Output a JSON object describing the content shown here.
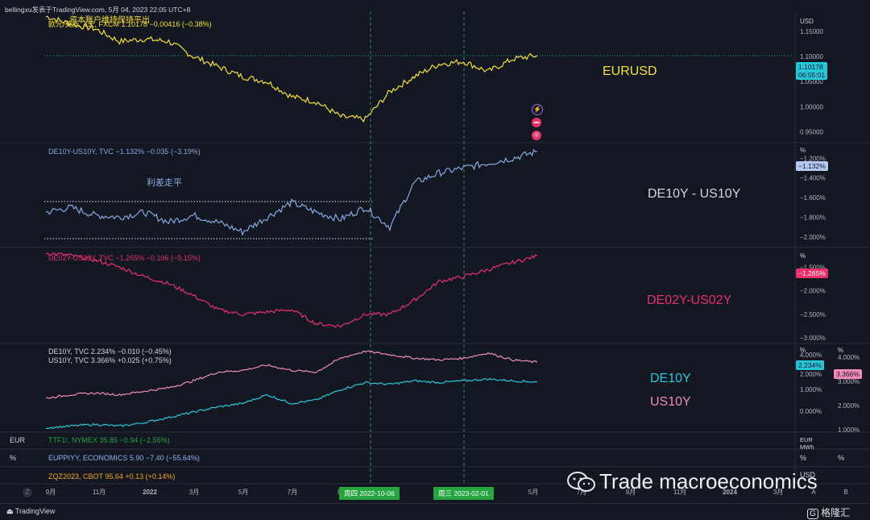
{
  "top_bar": {
    "text": "bellingxu发表于TradingView.com, 5月 04, 2023 22:05 UTC+8"
  },
  "chart_data": [
    {
      "type": "line",
      "header": "欧元/美元, 1天, FXCM  1.10178  −0.00416 (−0.38%)",
      "annotation": "资本账户维持保持平出",
      "panel_label": "EURUSD",
      "unit": "USD",
      "color": "#f5e031",
      "y_ticks": [
        "1.15000",
        "1.10000",
        "1.05000",
        "1.00000",
        "0.95000"
      ],
      "ylim": [
        0.93,
        1.19
      ],
      "last_label": "1.10178",
      "last_sub": "06:55:01",
      "x": [
        "2021-09",
        "2021-10",
        "2021-11",
        "2021-12",
        "2022-01",
        "2022-02",
        "2022-03",
        "2022-04",
        "2022-05",
        "2022-06",
        "2022-07",
        "2022-08",
        "2022-09",
        "2022-10",
        "2022-11",
        "2022-12",
        "2023-01",
        "2023-02",
        "2023-03",
        "2023-04",
        "2023-05"
      ],
      "values": [
        1.18,
        1.165,
        1.155,
        1.13,
        1.135,
        1.13,
        1.1,
        1.08,
        1.06,
        1.05,
        1.02,
        1.01,
        0.98,
        0.975,
        1.03,
        1.06,
        1.085,
        1.09,
        1.07,
        1.095,
        1.102
      ]
    },
    {
      "type": "line",
      "header": "DE10Y-US10Y, TVC  −1.132%  −0.035 (−3.19%)",
      "annotation": "利差走平",
      "panel_label": "DE10Y - US10Y",
      "unit": "%",
      "color": "#86a8e0",
      "y_ticks": [
        "−1.200%",
        "−1.400%",
        "−1.600%",
        "−1.800%",
        "−2.000%"
      ],
      "ylim": [
        -2.1,
        -1.05
      ],
      "last_label": "−1.132%",
      "x": [
        "2021-09",
        "2021-10",
        "2021-11",
        "2021-12",
        "2022-01",
        "2022-02",
        "2022-03",
        "2022-04",
        "2022-05",
        "2022-06",
        "2022-07",
        "2022-08",
        "2022-09",
        "2022-10",
        "2022-11",
        "2022-12",
        "2023-01",
        "2023-02",
        "2023-03",
        "2023-04",
        "2023-05"
      ],
      "values": [
        -1.75,
        -1.7,
        -1.78,
        -1.8,
        -1.75,
        -1.85,
        -1.78,
        -1.85,
        -1.95,
        -1.8,
        -1.65,
        -1.75,
        -1.82,
        -1.7,
        -1.9,
        -1.45,
        -1.35,
        -1.3,
        -1.25,
        -1.2,
        -1.132
      ]
    },
    {
      "type": "line",
      "header": "DE02Y-US02Y, TVC  −1.265%  −0.106 (−9.15%)",
      "panel_label": "DE02Y-US02Y",
      "unit": "%",
      "color": "#e8306a",
      "y_ticks": [
        "−1.500%",
        "−2.000%",
        "−2.500%",
        "−3.000%"
      ],
      "ylim": [
        -3.1,
        -1.1
      ],
      "last_label": "−1.265%",
      "x": [
        "2021-09",
        "2021-10",
        "2021-11",
        "2021-12",
        "2022-01",
        "2022-02",
        "2022-03",
        "2022-04",
        "2022-05",
        "2022-06",
        "2022-07",
        "2022-08",
        "2022-09",
        "2022-10",
        "2022-11",
        "2022-12",
        "2023-01",
        "2023-02",
        "2023-03",
        "2023-04",
        "2023-05"
      ],
      "values": [
        -1.2,
        -1.25,
        -1.35,
        -1.5,
        -1.7,
        -1.85,
        -2.1,
        -2.4,
        -2.5,
        -2.45,
        -2.4,
        -2.7,
        -2.75,
        -2.5,
        -2.5,
        -2.2,
        -1.8,
        -1.7,
        -1.55,
        -1.4,
        -1.265
      ]
    },
    {
      "type": "line",
      "header_lines": [
        {
          "text": "DE10Y, TVC  2.234%  −0.010 (−0.45%)",
          "color": "#7fd4d4"
        },
        {
          "text": "US10Y, TVC  3.366%  +0.025 (+0.75%)",
          "color": "#f28ab8"
        }
      ],
      "unit": "%",
      "y_ticks_left": [
        "4.000%",
        "2.000%",
        "1.000%",
        "0.000%"
      ],
      "y_ticks_right": [
        "4.000%",
        "3.000%",
        "2.000%",
        "1.000%"
      ],
      "x": [
        "2021-09",
        "2021-10",
        "2021-11",
        "2021-12",
        "2022-01",
        "2022-02",
        "2022-03",
        "2022-04",
        "2022-05",
        "2022-06",
        "2022-07",
        "2022-08",
        "2022-09",
        "2022-10",
        "2022-11",
        "2022-12",
        "2023-01",
        "2023-02",
        "2023-03",
        "2023-04",
        "2023-05"
      ],
      "series": [
        {
          "name": "DE10Y",
          "color": "#26c6da",
          "label_color": "#26c6da",
          "last_label": "2.234%",
          "values": [
            -0.4,
            -0.3,
            -0.2,
            -0.3,
            -0.1,
            0.2,
            0.5,
            0.8,
            1.0,
            1.5,
            1.0,
            1.2,
            1.8,
            2.2,
            2.1,
            2.3,
            2.2,
            2.3,
            2.4,
            2.3,
            2.234
          ]
        },
        {
          "name": "US10Y",
          "color": "#f28ab8",
          "label_color": "#f28ab8",
          "last_label": "3.366%",
          "values": [
            1.3,
            1.5,
            1.6,
            1.5,
            1.7,
            1.9,
            2.3,
            2.8,
            2.9,
            3.2,
            2.9,
            2.8,
            3.6,
            4.0,
            3.8,
            3.6,
            3.5,
            3.6,
            3.9,
            3.5,
            3.366
          ]
        }
      ]
    }
  ],
  "bottom_rows": [
    {
      "unit": "EUR",
      "text": "TTF1!, NYMEX  35.85  −0.94 (−2.55%)",
      "color": "#26a541",
      "right": "EUR MWh"
    },
    {
      "unit": "%",
      "text": "EUPPIYY, ECONOMICS  5.90  −7.40 (−55.64%)",
      "color": "#5a8ee0",
      "right": "%"
    },
    {
      "unit": "",
      "text": "ZQZ2023, CBOT  95.64  +0.13 (+0.14%)",
      "color": "#f5a623",
      "right": "USD"
    }
  ],
  "x_axis": {
    "labels": [
      "9月",
      "11月",
      "2022",
      "3月",
      "5月",
      "7月",
      "9",
      "",
      "",
      "5月",
      "7月",
      "9月",
      "11月",
      "2024",
      "3月",
      "A",
      "B"
    ],
    "marker1": "周四 2022-10-06",
    "marker2": "周三 2023-02-01"
  },
  "footer": {
    "logo_text": "TradingView",
    "watermark": "Trade macroeconomics",
    "brand": "格隆汇"
  }
}
